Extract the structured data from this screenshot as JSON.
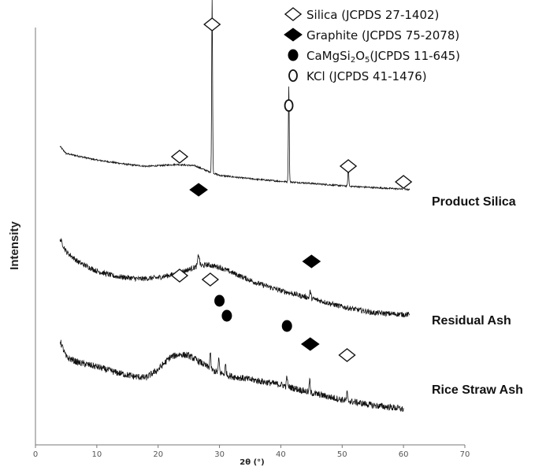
{
  "chart_data": {
    "type": "line",
    "xlabel": "2θ (°)",
    "ylabel": "Intensity",
    "xlim": [
      0,
      70
    ],
    "xticks": [
      0,
      10,
      20,
      30,
      40,
      50,
      60,
      70
    ],
    "grid": false,
    "legend_placement": "top-right",
    "legend": [
      {
        "marker": "open-diamond",
        "text": "Silica (JCPDS 27-1402)"
      },
      {
        "marker": "filled-diamond",
        "text": "Graphite (JCPDS 75-2078)"
      },
      {
        "marker": "filled-circle",
        "text_main": "CaMgSi",
        "sub1": "2",
        "text_mid": "O",
        "sub2": "5",
        "text_end": "(JCPDS 11-645)"
      },
      {
        "marker": "open-circle",
        "text": "KCl (JCPDS  41-1476)"
      }
    ],
    "series": [
      {
        "name": "Product Silica",
        "x_range": [
          4.0,
          61.0
        ],
        "baseline": [
          [
            4,
            2.25
          ],
          [
            5,
            1.97
          ],
          [
            7,
            1.87
          ],
          [
            10,
            1.72
          ],
          [
            15,
            1.55
          ],
          [
            18,
            1.48
          ],
          [
            20,
            1.5
          ],
          [
            23,
            1.55
          ],
          [
            26,
            1.5
          ],
          [
            28,
            1.3
          ],
          [
            30,
            1.13
          ],
          [
            33,
            1.05
          ],
          [
            36,
            0.98
          ],
          [
            40,
            0.9
          ],
          [
            45,
            0.82
          ],
          [
            50,
            0.73
          ],
          [
            55,
            0.66
          ],
          [
            60,
            0.6
          ],
          [
            61,
            0.58
          ]
        ],
        "peaks": [
          [
            28.8,
            6.7,
            0.1
          ],
          [
            41.3,
            3.7,
            0.1
          ],
          [
            51.0,
            0.8,
            0.1
          ],
          [
            60.0,
            0.45,
            0.08
          ]
        ],
        "noise": 0.03
      },
      {
        "name": "Residual Ash",
        "x_range": [
          4.0,
          61.0
        ],
        "baseline": [
          [
            4,
            3.3
          ],
          [
            5,
            2.8
          ],
          [
            7,
            2.4
          ],
          [
            10,
            2.05
          ],
          [
            13,
            1.85
          ],
          [
            17,
            1.75
          ],
          [
            20,
            1.8
          ],
          [
            23,
            1.95
          ],
          [
            26,
            2.2
          ],
          [
            28,
            2.3
          ],
          [
            30,
            2.2
          ],
          [
            33,
            1.9
          ],
          [
            36,
            1.6
          ],
          [
            40,
            1.3
          ],
          [
            45,
            1.0
          ],
          [
            50,
            0.68
          ],
          [
            55,
            0.45
          ],
          [
            60,
            0.38
          ],
          [
            61,
            0.38
          ]
        ],
        "peaks": [
          [
            26.6,
            0.45,
            0.2
          ],
          [
            44.8,
            0.25,
            0.15
          ]
        ],
        "noise": 0.1
      },
      {
        "name": "Rice Straw Ash",
        "x_range": [
          4.0,
          60.0
        ],
        "baseline": [
          [
            4,
            2.5
          ],
          [
            5,
            1.9
          ],
          [
            7,
            1.7
          ],
          [
            10,
            1.55
          ],
          [
            13,
            1.35
          ],
          [
            16,
            1.2
          ],
          [
            18,
            1.15
          ],
          [
            20,
            1.45
          ],
          [
            22,
            1.9
          ],
          [
            23.5,
            2.0
          ],
          [
            25,
            1.95
          ],
          [
            27,
            1.7
          ],
          [
            29,
            1.4
          ],
          [
            32,
            1.2
          ],
          [
            36,
            1.05
          ],
          [
            40,
            0.9
          ],
          [
            45,
            0.6
          ],
          [
            50,
            0.35
          ],
          [
            55,
            0.15
          ],
          [
            59,
            0.05
          ],
          [
            60,
            0.0
          ]
        ],
        "peaks": [
          [
            28.5,
            0.6,
            0.12
          ],
          [
            29.9,
            0.5,
            0.12
          ],
          [
            31.0,
            0.35,
            0.12
          ],
          [
            41.0,
            0.4,
            0.1
          ],
          [
            44.7,
            0.5,
            0.1
          ],
          [
            50.8,
            0.3,
            0.1
          ]
        ],
        "noise": 0.12
      }
    ],
    "annotations": [
      {
        "series": "Product Silica",
        "marker": "open-diamond",
        "x": 23.5
      },
      {
        "series": "Product Silica",
        "marker": "open-diamond",
        "x": 28.8
      },
      {
        "series": "Product Silica",
        "marker": "open-circle",
        "x": 41.3
      },
      {
        "series": "Product Silica",
        "marker": "open-diamond",
        "x": 51.0
      },
      {
        "series": "Product Silica",
        "marker": "open-diamond",
        "x": 60.0
      },
      {
        "series": "Residual Ash",
        "marker": "filled-diamond",
        "x": 26.6
      },
      {
        "series": "Residual Ash",
        "marker": "filled-diamond",
        "x": 45.0
      },
      {
        "series": "Rice Straw Ash",
        "marker": "open-diamond",
        "x": 23.5
      },
      {
        "series": "Rice Straw Ash",
        "marker": "open-diamond",
        "x": 28.5
      },
      {
        "series": "Rice Straw Ash",
        "marker": "filled-circle",
        "x": 30.0
      },
      {
        "series": "Rice Straw Ash",
        "marker": "filled-circle",
        "x": 31.2
      },
      {
        "series": "Rice Straw Ash",
        "marker": "filled-circle",
        "x": 41.0
      },
      {
        "series": "Rice Straw Ash",
        "marker": "filled-diamond",
        "x": 44.8
      },
      {
        "series": "Rice Straw Ash",
        "marker": "open-diamond",
        "x": 50.8
      }
    ]
  }
}
